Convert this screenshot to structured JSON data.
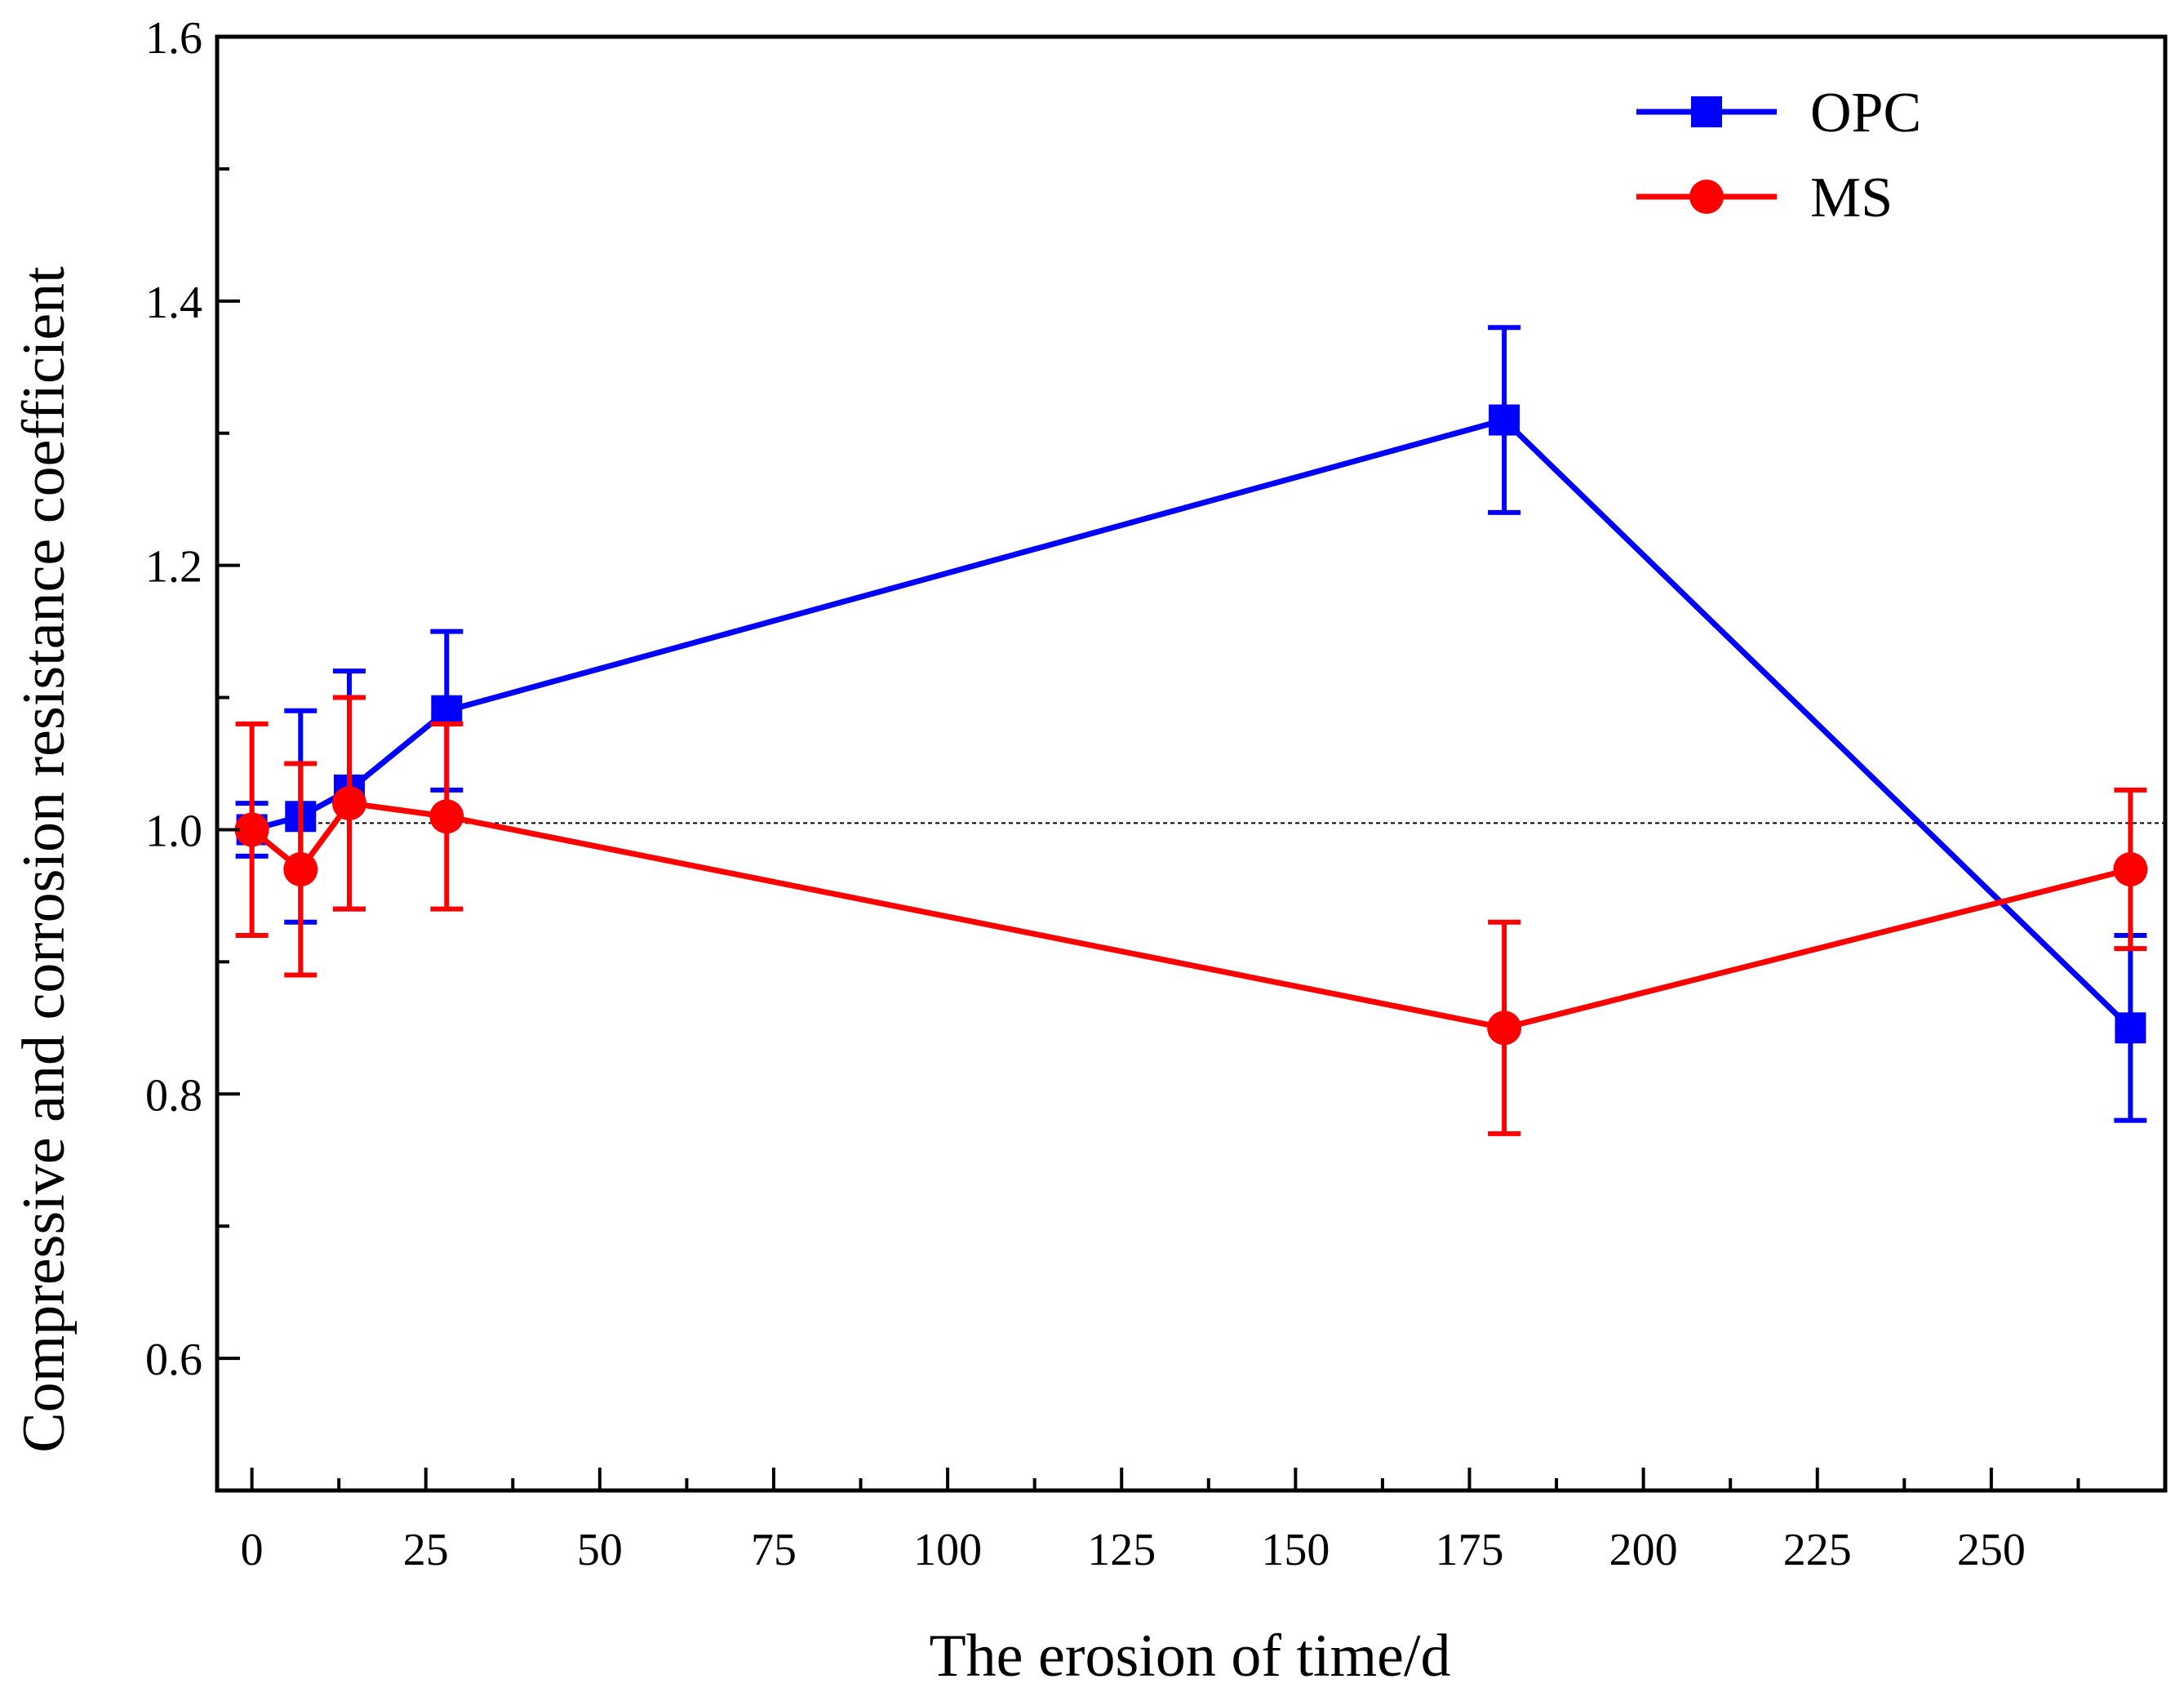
{
  "chart_data": {
    "type": "line",
    "title": "",
    "xlabel": "The erosion of time/d",
    "ylabel": "Compressive and corrosion resistance coefficient",
    "xlim": [
      -5,
      275
    ],
    "ylim": [
      0.5,
      1.6
    ],
    "x_ticks": [
      0,
      25,
      50,
      75,
      100,
      125,
      150,
      175,
      200,
      225,
      250
    ],
    "x_tick_labels": [
      "0",
      "25",
      "50",
      "75",
      "100",
      "125",
      "150",
      "175",
      "200",
      "225",
      "250"
    ],
    "y_ticks": [
      0.6,
      0.8,
      1.0,
      1.2,
      1.4,
      1.6
    ],
    "y_tick_labels": [
      "0.6",
      "0.8",
      "1.0",
      "1.2",
      "1.4",
      "1.6"
    ],
    "reference_line": {
      "y": 1.005,
      "style": "dotted",
      "color": "#000000"
    },
    "legend_position": "top-right",
    "series": [
      {
        "name": "OPC",
        "color": "#0000ff",
        "marker": "square",
        "x": [
          0,
          7,
          14,
          28,
          180,
          270
        ],
        "y": [
          1.0,
          1.01,
          1.03,
          1.09,
          1.31,
          0.85
        ],
        "error": [
          0.02,
          0.08,
          0.09,
          0.06,
          0.07,
          0.07
        ]
      },
      {
        "name": "MS",
        "color": "#ff0000",
        "marker": "circle",
        "x": [
          0,
          7,
          14,
          28,
          180,
          270
        ],
        "y": [
          1.0,
          0.97,
          1.02,
          1.01,
          0.85,
          0.97
        ],
        "error": [
          0.08,
          0.08,
          0.08,
          0.07,
          0.08,
          0.06
        ]
      }
    ]
  }
}
